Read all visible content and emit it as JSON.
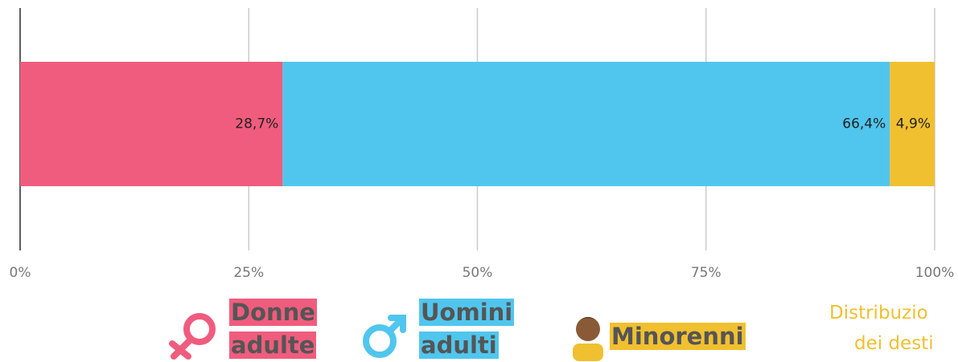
{
  "chart_data": {
    "type": "stacked-bar-horizontal",
    "series": [
      {
        "name": "Donne adulte",
        "color": "#f05c7e",
        "values": [
          28.7
        ],
        "value_labels": [
          "28,7%"
        ]
      },
      {
        "name": "Uomini adulti",
        "color": "#50c6ee",
        "values": [
          66.4
        ],
        "value_labels": [
          "66,4%"
        ]
      },
      {
        "name": "Minorenni",
        "color": "#f0c030",
        "values": [
          4.9
        ],
        "value_labels": [
          "4,9%"
        ]
      }
    ],
    "xlim": [
      0,
      100
    ],
    "xticks": [
      {
        "value": 0,
        "label": "0%"
      },
      {
        "value": 25,
        "label": "25%"
      },
      {
        "value": 50,
        "label": "50%"
      },
      {
        "value": 75,
        "label": "75%"
      },
      {
        "value": 100,
        "label": "100%"
      }
    ],
    "grid": true,
    "annotations": [
      "Distribuzio",
      "dei desti"
    ]
  }
}
